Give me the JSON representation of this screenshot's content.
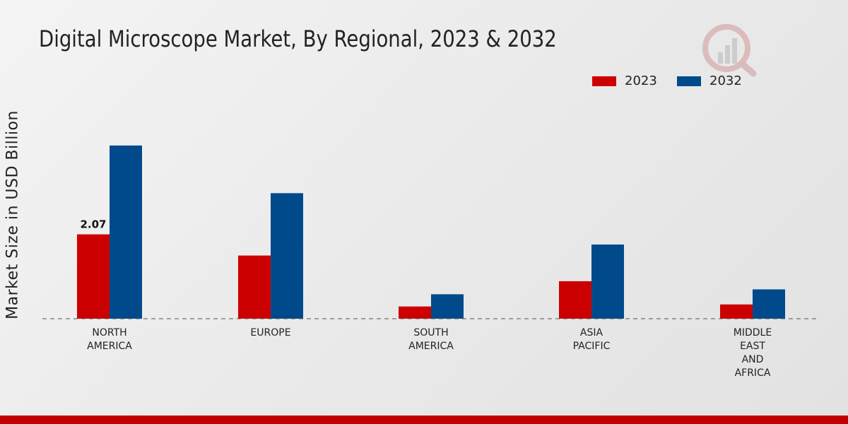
{
  "title": "Digital Microscope Market, By Regional, 2023 & 2032",
  "chart_data": {
    "type": "bar",
    "title": "Digital Microscope Market, By Regional, 2023 & 2032",
    "xlabel": "",
    "ylabel": "Market Size in USD Billion",
    "categories": [
      "NORTH\nAMERICA",
      "EUROPE",
      "SOUTH\nAMERICA",
      "ASIA\nPACIFIC",
      "MIDDLE\nEAST\nAND\nAFRICA"
    ],
    "series": [
      {
        "name": "2023",
        "color": "#cc0000",
        "values": [
          2.07,
          1.55,
          0.3,
          0.92,
          0.35
        ]
      },
      {
        "name": "2032",
        "color": "#004a8c",
        "values": [
          4.25,
          3.08,
          0.6,
          1.82,
          0.72
        ]
      }
    ],
    "data_labels": [
      {
        "series": "2023",
        "category_index": 0,
        "text": "2.07"
      }
    ],
    "ylim": [
      0,
      7.3
    ],
    "legend_position": "top-right",
    "grid": false
  }
}
